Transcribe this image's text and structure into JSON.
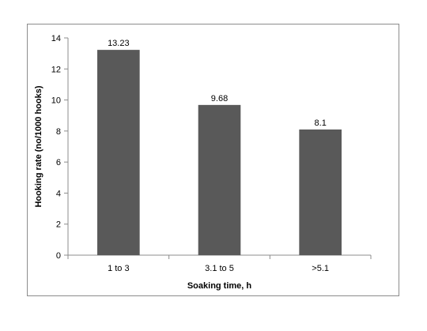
{
  "chart_data": {
    "type": "bar",
    "categories": [
      "1 to 3",
      "3.1 to 5",
      ">5.1"
    ],
    "values": [
      13.23,
      9.68,
      8.1
    ],
    "data_labels": [
      "13.23",
      "9.68",
      "8.1"
    ],
    "title": "",
    "xlabel": "Soaking time, h",
    "ylabel": "Hooking rate (no/1000 hooks)",
    "ylim": [
      0,
      14
    ],
    "yticks": [
      "0",
      "2",
      "4",
      "6",
      "8",
      "10",
      "12",
      "14"
    ],
    "grid": false,
    "legend": "none",
    "bar_color": "#595959"
  }
}
